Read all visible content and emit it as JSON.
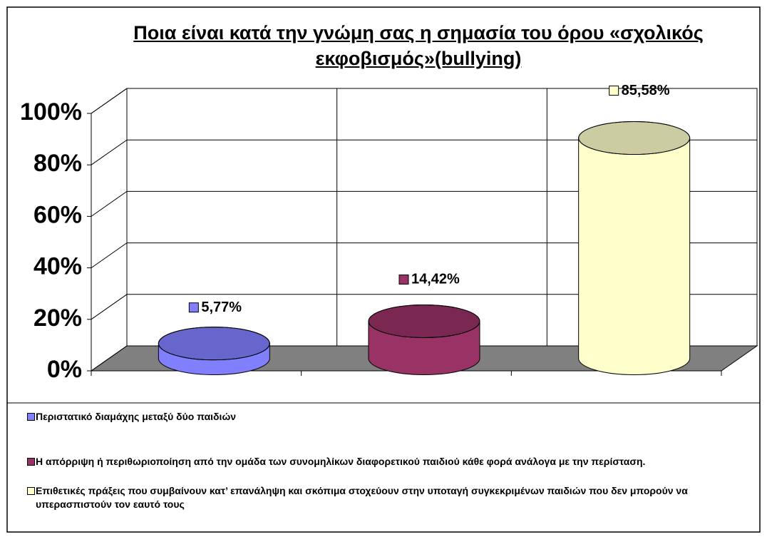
{
  "chart_data": {
    "type": "cylinder",
    "title": "Ποια είναι κατά την γνώμη σας η σημασία του όρου «σχολικός εκφοβισμός»(bullying)",
    "series": [
      {
        "name": "Περιστατικό διαμάχης μεταξύ δύο παιδιών",
        "color": "#8080ff",
        "values": [
          5.77
        ],
        "value_labels": [
          "5,77%"
        ]
      },
      {
        "name": "Η απόρριψη ή περιθωριοποίηση από την ομάδα των συνομηλίκων διαφορετικού παιδιού κάθε φορά ανάλογα με την περίσταση.",
        "color": "#993366",
        "values": [
          14.42
        ],
        "value_labels": [
          "14,42%"
        ]
      },
      {
        "name": "Επιθετικές πράξεις που συμβαίνουν κατ’ επανάληψη και σκόπιμα στοχεύουν στην υποταγή συγκεκριμένων παιδιών που δεν μπορούν να υπερασπιστούν τον εαυτό τους",
        "color": "#ffffcc",
        "values": [
          85.58
        ],
        "value_labels": [
          "85,58%"
        ]
      }
    ],
    "ylim": [
      0,
      100
    ],
    "yticks": [
      {
        "value": 0,
        "label": "0%"
      },
      {
        "value": 20,
        "label": "20%"
      },
      {
        "value": 40,
        "label": "40%"
      },
      {
        "value": 60,
        "label": "60%"
      },
      {
        "value": 80,
        "label": "80%"
      },
      {
        "value": 100,
        "label": "100%"
      }
    ],
    "grid": true,
    "legend": "bottom"
  }
}
